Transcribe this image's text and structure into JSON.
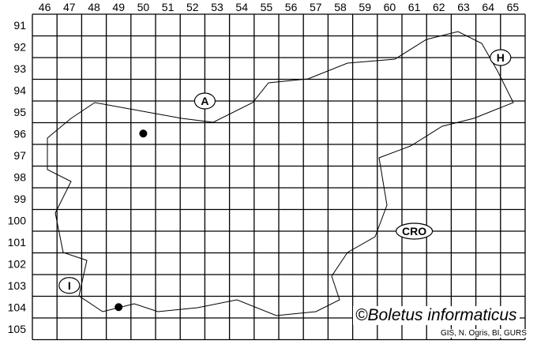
{
  "map": {
    "column_labels": [
      "46",
      "47",
      "48",
      "49",
      "50",
      "51",
      "52",
      "53",
      "54",
      "55",
      "56",
      "57",
      "58",
      "59",
      "60",
      "61",
      "62",
      "63",
      "64",
      "65"
    ],
    "row_labels": [
      "91",
      "92",
      "93",
      "94",
      "95",
      "96",
      "97",
      "98",
      "99",
      "100",
      "101",
      "102",
      "103",
      "104",
      "105"
    ],
    "country_labels": [
      {
        "text": "A",
        "col": 52.5,
        "row": 94.5
      },
      {
        "text": "H",
        "col": 64.5,
        "row": 92.5
      },
      {
        "text": "CRO",
        "col": 61,
        "row": 100.5
      },
      {
        "text": "I",
        "col": 47,
        "row": 103
      }
    ],
    "records": [
      {
        "col": 50,
        "row": 96
      },
      {
        "col": 49,
        "row": 104
      }
    ],
    "credit": "©Boletus informaticus",
    "source": "GIS, N. Ogris, BI, GURS",
    "colors": {
      "grid": "#000000",
      "marker": "#000000",
      "background": "#ffffff"
    }
  }
}
